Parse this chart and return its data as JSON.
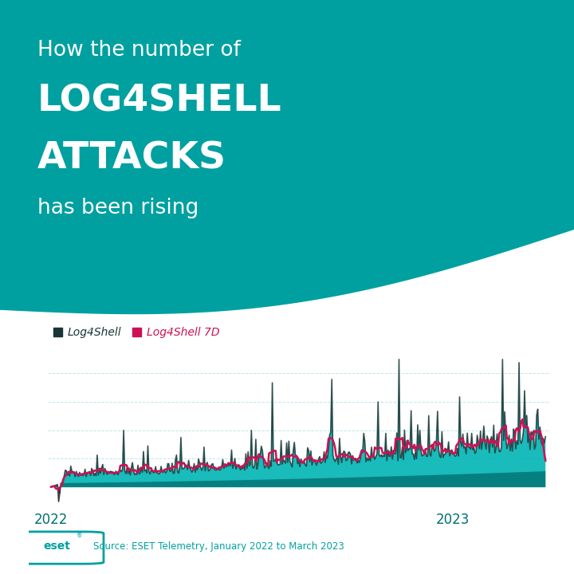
{
  "bg_color": "#ffffff",
  "teal_color": "#00a0a0",
  "teal_dark": "#007070",
  "teal_fill": "#00b4b4",
  "text_color_white": "#ffffff",
  "text_color_teal": "#00a0a0",
  "crimson_color": "#cc1155",
  "dark_navy": "#1a3535",
  "grid_color": "#a0dede",
  "title_line1": "How the number of",
  "title_line2": "LOG4SHELL",
  "title_line3": "ATTACKS",
  "title_line4": "has been rising",
  "legend_label1": "Log4Shell",
  "legend_label2": "Log4Shell 7D",
  "source_text": "Source: ESET Telemetry, January 2022 to March 2023",
  "x_labels": [
    "2022",
    "2023"
  ],
  "num_points": 450
}
